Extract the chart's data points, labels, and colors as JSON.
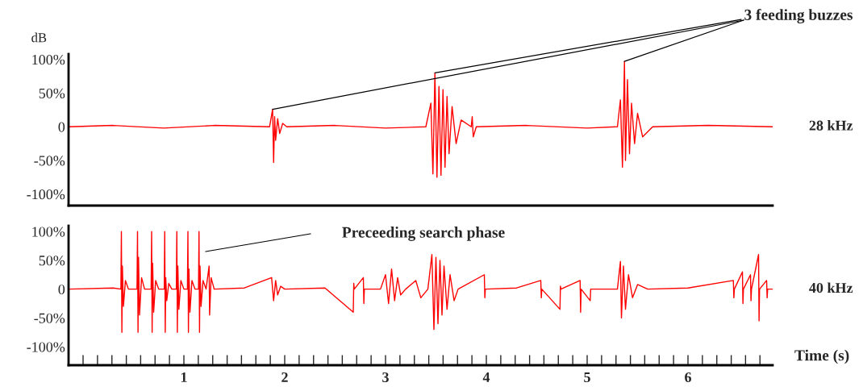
{
  "chart_data": [
    {
      "type": "line",
      "ylabel": "dB",
      "xlim": [
        -0.144,
        6.84
      ],
      "ylim": [
        -117,
        108
      ],
      "yticks": [
        {
          "value": 100,
          "label": "100%"
        },
        {
          "value": 50,
          "label": "50%"
        },
        0,
        {
          "value": -50,
          "label": "-50%"
        },
        {
          "value": -100,
          "label": "-100%"
        }
      ],
      "tick_labels": "y",
      "annotations": [
        {
          "text": "3 feeding buzzes",
          "x": 3.49,
          "y": 80
        }
      ],
      "series": [
        {
          "name": "28 kHz",
          "color": "#ff0000",
          "x": [
            -0.14,
            0.3,
            0.8,
            1.3,
            1.85,
            1.88,
            1.89,
            1.9,
            1.91,
            1.93,
            1.95,
            1.98,
            2.02,
            2.5,
            3.0,
            3.4,
            3.45,
            3.47,
            3.49,
            3.51,
            3.53,
            3.55,
            3.57,
            3.59,
            3.61,
            3.63,
            3.66,
            3.7,
            3.75,
            3.85,
            3.86,
            3.87,
            3.9,
            4.4,
            5.0,
            5.3,
            5.33,
            5.35,
            5.37,
            5.38,
            5.4,
            5.42,
            5.44,
            5.47,
            5.5,
            5.55,
            5.65,
            6.2,
            6.84
          ],
          "values": [
            0,
            2,
            -2,
            2,
            0,
            26,
            -53,
            15,
            -20,
            12,
            -10,
            5,
            0,
            2,
            -2,
            0,
            35,
            -70,
            80,
            -75,
            60,
            -72,
            55,
            -60,
            45,
            -40,
            30,
            -25,
            10,
            0,
            15,
            -15,
            0,
            2,
            -2,
            0,
            40,
            -60,
            97,
            -50,
            70,
            -40,
            35,
            -25,
            20,
            -15,
            0,
            2,
            0
          ]
        }
      ]
    },
    {
      "type": "line",
      "xlabel": "Time (s)",
      "xlim": [
        -0.144,
        6.84
      ],
      "ylim": [
        -132,
        110
      ],
      "xticks": [
        {
          "value": 0,
          "label": null
        },
        {
          "value": 0.143,
          "label": null
        },
        {
          "value": 0.286,
          "label": null
        },
        {
          "value": 0.429,
          "label": null
        },
        {
          "value": 0.571,
          "label": null
        },
        {
          "value": 0.714,
          "label": null
        },
        {
          "value": 0.857,
          "label": null
        },
        1,
        {
          "value": 1.143,
          "label": null
        },
        {
          "value": 1.286,
          "label": null
        },
        {
          "value": 1.429,
          "label": null
        },
        {
          "value": 1.571,
          "label": null
        },
        {
          "value": 1.714,
          "label": null
        },
        {
          "value": 1.857,
          "label": null
        },
        2,
        {
          "value": 2.143,
          "label": null
        },
        {
          "value": 2.286,
          "label": null
        },
        {
          "value": 2.429,
          "label": null
        },
        {
          "value": 2.571,
          "label": null
        },
        {
          "value": 2.714,
          "label": null
        },
        {
          "value": 2.857,
          "label": null
        },
        3,
        {
          "value": 3.143,
          "label": null
        },
        {
          "value": 3.286,
          "label": null
        },
        {
          "value": 3.429,
          "label": null
        },
        {
          "value": 3.571,
          "label": null
        },
        {
          "value": 3.714,
          "label": null
        },
        {
          "value": 3.857,
          "label": null
        },
        4,
        {
          "value": 4.143,
          "label": null
        },
        {
          "value": 4.286,
          "label": null
        },
        {
          "value": 4.429,
          "label": null
        },
        {
          "value": 4.571,
          "label": null
        },
        {
          "value": 4.714,
          "label": null
        },
        {
          "value": 4.857,
          "label": null
        },
        5,
        {
          "value": 5.143,
          "label": null
        },
        {
          "value": 5.286,
          "label": null
        },
        {
          "value": 5.429,
          "label": null
        },
        {
          "value": 5.571,
          "label": null
        },
        {
          "value": 5.714,
          "label": null
        },
        {
          "value": 5.857,
          "label": null
        },
        6,
        {
          "value": 6.143,
          "label": null
        },
        {
          "value": 6.286,
          "label": null
        },
        {
          "value": 6.429,
          "label": null
        },
        {
          "value": 6.571,
          "label": null
        },
        {
          "value": 6.714,
          "label": null
        }
      ],
      "yticks": [
        {
          "value": 100,
          "label": "100%"
        },
        {
          "value": 50,
          "label": "50%"
        },
        0,
        {
          "value": -50,
          "label": "-50%"
        },
        {
          "value": -100,
          "label": "-100%"
        }
      ],
      "annotations": [
        "Preceeding search phase"
      ],
      "series": [
        {
          "name": "40 kHz",
          "color": "#ff0000",
          "x": [
            -0.14,
            0.3,
            0.375,
            0.38,
            0.385,
            0.39,
            0.4,
            0.42,
            0.45,
            0.535,
            0.54,
            0.545,
            0.55,
            0.56,
            0.58,
            0.61,
            0.675,
            0.68,
            0.685,
            0.69,
            0.7,
            0.72,
            0.75,
            0.805,
            0.81,
            0.815,
            0.82,
            0.83,
            0.85,
            0.88,
            0.925,
            0.93,
            0.935,
            0.94,
            0.95,
            0.97,
            1.0,
            1.035,
            1.04,
            1.045,
            1.05,
            1.06,
            1.08,
            1.11,
            1.145,
            1.15,
            1.155,
            1.16,
            1.17,
            1.19,
            1.22,
            1.25,
            1.255,
            1.27,
            1.3,
            1.6,
            1.87,
            1.89,
            1.91,
            1.93,
            1.96,
            2.0,
            2.4,
            2.68,
            2.685,
            2.69,
            2.78,
            2.785,
            2.79,
            2.95,
            3.0,
            3.03,
            3.06,
            3.09,
            3.12,
            3.15,
            3.2,
            3.3,
            3.35,
            3.42,
            3.46,
            3.48,
            3.5,
            3.52,
            3.54,
            3.56,
            3.58,
            3.61,
            3.64,
            3.68,
            3.72,
            3.98,
            3.985,
            3.99,
            4.3,
            4.54,
            4.545,
            4.55,
            4.73,
            4.735,
            4.74,
            4.93,
            4.935,
            4.94,
            5.03,
            5.035,
            5.3,
            5.33,
            5.34,
            5.36,
            5.38,
            5.41,
            5.45,
            5.5,
            5.6,
            6.0,
            6.45,
            6.455,
            6.46,
            6.54,
            6.545,
            6.55,
            6.62,
            6.625,
            6.63,
            6.7,
            6.705,
            6.71,
            6.78,
            6.785,
            6.79,
            6.84
          ],
          "values": [
            0,
            2,
            0,
            100,
            -75,
            40,
            -30,
            15,
            0,
            0,
            100,
            -75,
            55,
            -45,
            20,
            0,
            0,
            100,
            -75,
            45,
            -40,
            15,
            0,
            0,
            100,
            -75,
            20,
            -20,
            10,
            0,
            0,
            100,
            -75,
            40,
            -35,
            15,
            0,
            0,
            100,
            -75,
            35,
            -40,
            15,
            0,
            0,
            100,
            -75,
            40,
            -30,
            15,
            0,
            40,
            -45,
            20,
            0,
            2,
            20,
            -20,
            15,
            -10,
            5,
            0,
            2,
            -40,
            10,
            0,
            20,
            -25,
            0,
            0,
            25,
            -25,
            35,
            -20,
            20,
            -10,
            0,
            15,
            -15,
            0,
            60,
            -70,
            55,
            -60,
            50,
            -45,
            40,
            -35,
            25,
            -20,
            0,
            25,
            -15,
            0,
            2,
            15,
            -15,
            0,
            -35,
            5,
            0,
            15,
            -40,
            0,
            -20,
            0,
            0,
            48,
            -50,
            40,
            -35,
            25,
            -15,
            8,
            0,
            2,
            15,
            -15,
            0,
            30,
            -25,
            0,
            25,
            -20,
            0,
            60,
            -55,
            0,
            15,
            -15,
            0,
            0
          ]
        }
      ]
    }
  ]
}
